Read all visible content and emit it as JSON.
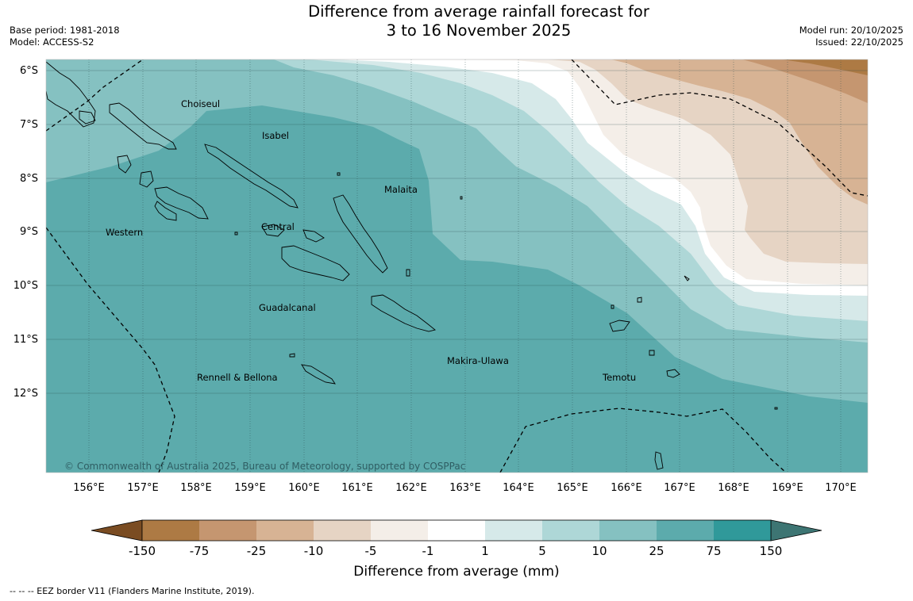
{
  "title": {
    "line1": "Difference from average rainfall forecast for",
    "line2": "3 to 16 November 2025"
  },
  "meta_left": {
    "base_period": "Base period: 1981-2018",
    "model": "Model: ACCESS-S2"
  },
  "meta_right": {
    "model_run": "Model run: 20/10/2025",
    "issued": "Issued: 22/10/2025"
  },
  "map": {
    "lat_labels": [
      "6°S",
      "7°S",
      "8°S",
      "9°S",
      "10°S",
      "11°S",
      "12°S"
    ],
    "lon_labels": [
      "156°E",
      "157°E",
      "158°E",
      "159°E",
      "160°E",
      "161°E",
      "162°E",
      "163°E",
      "164°E",
      "165°E",
      "166°E",
      "167°E",
      "168°E",
      "169°E",
      "170°E"
    ],
    "places": [
      "Choiseul",
      "Isabel",
      "Malaita",
      "Western",
      "Central",
      "Guadalcanal",
      "Makira-Ulawa",
      "Rennell & Bellona",
      "Temotu"
    ],
    "copyright": "© Commonwealth of Australia 2025, Bureau of Meteorology, supported by COSPPac"
  },
  "colorbar": {
    "ticks": [
      "-150",
      "-75",
      "-25",
      "-10",
      "-5",
      "-1",
      "1",
      "5",
      "10",
      "25",
      "75",
      "150"
    ],
    "colors": [
      "#7a4c22",
      "#ad7a44",
      "#c59670",
      "#d7b394",
      "#e6d4c4",
      "#f4eee8",
      "#ffffff",
      "#d6e9e9",
      "#aed7d7",
      "#85c1c1",
      "#5cabac",
      "#30999a",
      "#3d7573"
    ],
    "title": "Difference from average (mm)"
  },
  "footnote": "--  --  -- EEZ border V11 (Flanders Marine Institute, 2019)."
}
